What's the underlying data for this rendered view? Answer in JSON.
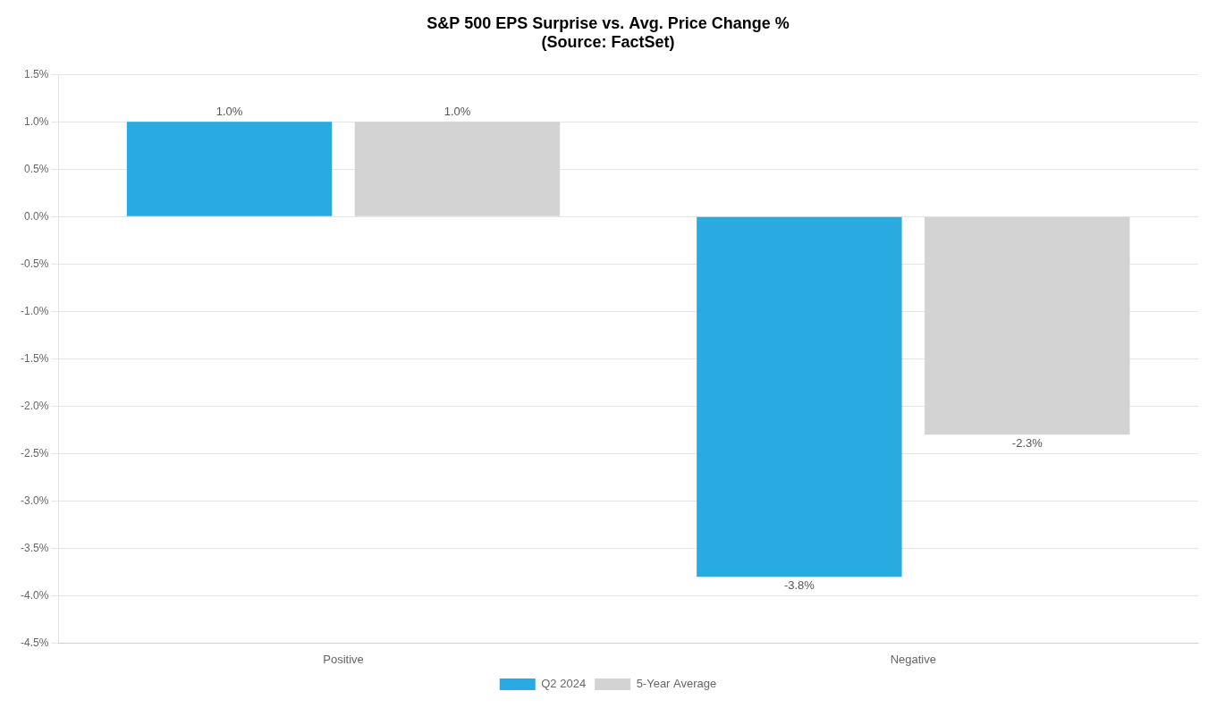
{
  "chart_data": {
    "type": "bar",
    "title": "S&P 500 EPS Surprise vs. Avg. Price Change %",
    "subtitle": "(Source: FactSet)",
    "categories": [
      "Positive",
      "Negative"
    ],
    "series": [
      {
        "name": "Q2 2024",
        "color": "#29ABE2",
        "values": [
          1.0,
          -3.8
        ],
        "value_labels": [
          "1.0%",
          "-3.8%"
        ]
      },
      {
        "name": "5-Year Average",
        "color": "#D3D3D3",
        "values": [
          1.0,
          -2.3
        ],
        "value_labels": [
          "1.0%",
          "-2.3%"
        ]
      }
    ],
    "ylim": [
      -4.5,
      1.5
    ],
    "yticks": [
      {
        "value": -4.5,
        "label": "-4.5%"
      },
      {
        "value": -4.0,
        "label": "-4.0%"
      },
      {
        "value": -3.5,
        "label": "-3.5%"
      },
      {
        "value": -3.0,
        "label": "-3.0%"
      },
      {
        "value": -2.5,
        "label": "-2.5%"
      },
      {
        "value": -2.0,
        "label": "-2.0%"
      },
      {
        "value": -1.5,
        "label": "-1.5%"
      },
      {
        "value": -1.0,
        "label": "-1.0%"
      },
      {
        "value": -0.5,
        "label": "-0.5%"
      },
      {
        "value": 0.0,
        "label": "0.0%"
      },
      {
        "value": 0.5,
        "label": "0.5%"
      },
      {
        "value": 1.0,
        "label": "1.0%"
      },
      {
        "value": 1.5,
        "label": "1.5%"
      }
    ],
    "grid": true,
    "legend": "bottom",
    "data_labels": true
  }
}
